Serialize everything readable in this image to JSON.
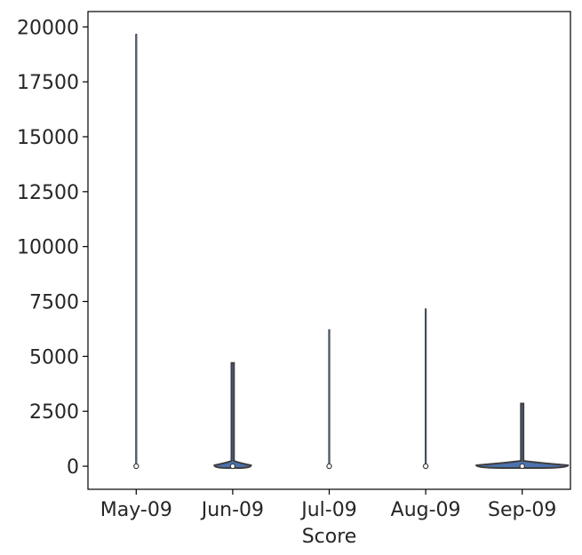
{
  "chart_data": {
    "type": "violin",
    "title": "",
    "xlabel": "Score",
    "ylabel": "",
    "categories": [
      "May-09",
      "Jun-09",
      "Jul-09",
      "Aug-09",
      "Sep-09"
    ],
    "ylim": [
      -1050,
      20700
    ],
    "yticks": [
      0,
      2500,
      5000,
      7500,
      10000,
      12500,
      15000,
      17500,
      20000
    ],
    "ytick_labels": [
      "0",
      "2500",
      "5000",
      "7500",
      "10000",
      "12500",
      "15000",
      "17500",
      "20000"
    ],
    "series": [
      {
        "category": "May-09",
        "min": 0,
        "max": 19650,
        "median": 0,
        "max_width_fraction": 0.02
      },
      {
        "category": "Jun-09",
        "min": 0,
        "max": 4700,
        "median": 0,
        "max_width_fraction": 0.38
      },
      {
        "category": "Jul-09",
        "min": 0,
        "max": 6200,
        "median": 0,
        "max_width_fraction": 0.02
      },
      {
        "category": "Aug-09",
        "min": 0,
        "max": 7150,
        "median": 0,
        "max_width_fraction": 0.03
      },
      {
        "category": "Sep-09",
        "min": 0,
        "max": 2850,
        "median": 0,
        "max_width_fraction": 0.95
      }
    ],
    "grid": false,
    "legend": "none",
    "colors": {
      "violin_stroke": "#3f3f3f",
      "violin_fill": "#4c72b0",
      "median_marker": "#ffffff",
      "axis": "#000000",
      "text": "#262626"
    }
  }
}
